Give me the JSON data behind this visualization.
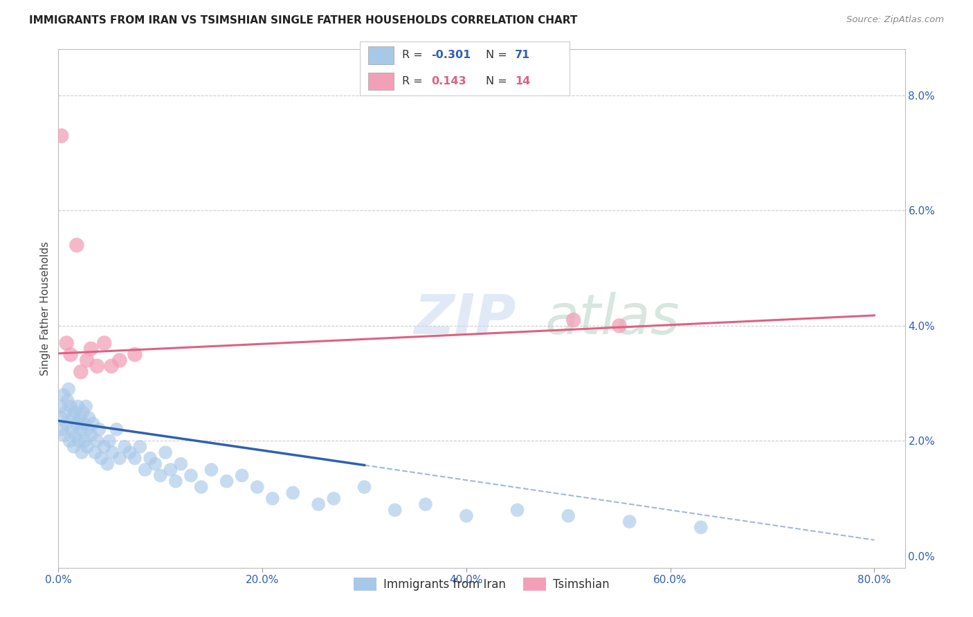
{
  "title": "IMMIGRANTS FROM IRAN VS TSIMSHIAN SINGLE FATHER HOUSEHOLDS CORRELATION CHART",
  "source": "Source: ZipAtlas.com",
  "ylabel": "Single Father Households",
  "xlabel_vals": [
    0,
    20,
    40,
    60,
    80
  ],
  "yright_vals": [
    0,
    2,
    4,
    6,
    8
  ],
  "xlim": [
    0,
    83
  ],
  "ylim": [
    -0.2,
    8.8
  ],
  "blue_color": "#A8C8E8",
  "pink_color": "#F2A0B8",
  "blue_line_color": "#3060B0",
  "pink_line_color": "#E06080",
  "legend_blue_label": "Immigrants from Iran",
  "legend_pink_label": "Tsimshian",
  "r_blue": "-0.301",
  "n_blue": "71",
  "r_pink": "0.143",
  "n_pink": "14",
  "watermark_zip": "ZIP",
  "watermark_atlas": "atlas",
  "grid_color": "#CCCCCC",
  "iran_x": [
    0.2,
    0.3,
    0.4,
    0.5,
    0.6,
    0.7,
    0.8,
    0.9,
    1.0,
    1.1,
    1.2,
    1.3,
    1.4,
    1.5,
    1.6,
    1.7,
    1.8,
    1.9,
    2.0,
    2.1,
    2.2,
    2.3,
    2.4,
    2.5,
    2.6,
    2.7,
    2.8,
    2.9,
    3.0,
    3.2,
    3.4,
    3.6,
    3.8,
    4.0,
    4.2,
    4.5,
    4.8,
    5.0,
    5.3,
    5.7,
    6.0,
    6.5,
    7.0,
    7.5,
    8.0,
    8.5,
    9.0,
    9.5,
    10.0,
    10.5,
    11.0,
    11.5,
    12.0,
    13.0,
    14.0,
    15.0,
    16.5,
    18.0,
    19.5,
    21.0,
    23.0,
    25.5,
    27.0,
    30.0,
    33.0,
    36.0,
    40.0,
    45.0,
    50.0,
    56.0,
    63.0
  ],
  "iran_y": [
    2.6,
    2.4,
    2.2,
    2.8,
    2.1,
    2.5,
    2.3,
    2.7,
    2.9,
    2.0,
    2.6,
    2.2,
    2.4,
    1.9,
    2.5,
    2.1,
    2.3,
    2.6,
    2.0,
    2.4,
    2.2,
    1.8,
    2.5,
    2.3,
    2.0,
    2.6,
    1.9,
    2.2,
    2.4,
    2.1,
    2.3,
    1.8,
    2.0,
    2.2,
    1.7,
    1.9,
    1.6,
    2.0,
    1.8,
    2.2,
    1.7,
    1.9,
    1.8,
    1.7,
    1.9,
    1.5,
    1.7,
    1.6,
    1.4,
    1.8,
    1.5,
    1.3,
    1.6,
    1.4,
    1.2,
    1.5,
    1.3,
    1.4,
    1.2,
    1.0,
    1.1,
    0.9,
    1.0,
    1.2,
    0.8,
    0.9,
    0.7,
    0.8,
    0.7,
    0.6,
    0.5
  ],
  "tsimshian_x": [
    0.3,
    0.8,
    1.2,
    1.8,
    2.2,
    2.8,
    3.2,
    3.8,
    4.5,
    5.2,
    7.5,
    50.5,
    55.0,
    6.0
  ],
  "tsimshian_y": [
    7.3,
    3.7,
    3.5,
    5.4,
    3.2,
    3.4,
    3.6,
    3.3,
    3.7,
    3.3,
    3.5,
    4.1,
    4.0,
    3.4
  ],
  "pink_line_x0": 0,
  "pink_line_y0": 3.52,
  "pink_line_x1": 80,
  "pink_line_y1": 4.18,
  "blue_solid_x0": 0,
  "blue_solid_y0": 2.35,
  "blue_solid_x1": 30,
  "blue_solid_y1": 1.58,
  "blue_dash_x0": 30,
  "blue_dash_y0": 1.58,
  "blue_dash_x1": 80,
  "blue_dash_y1": 0.28
}
